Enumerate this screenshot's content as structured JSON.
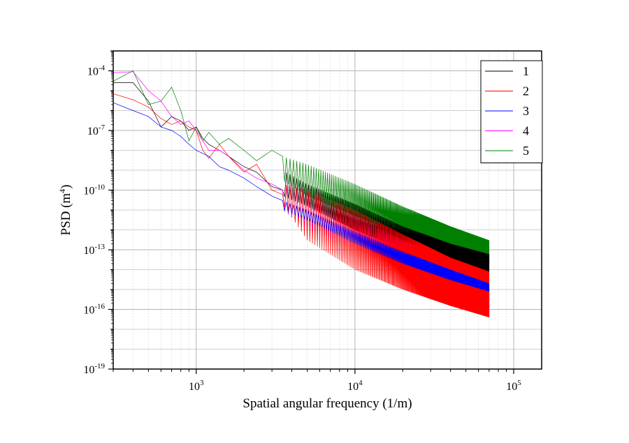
{
  "chart_data": {
    "type": "line",
    "title": "",
    "xlabel": "Spatial angular frequency (1/m)",
    "ylabel": "PSD (m",
    "ylabel_exponent": "4",
    "ylabel_suffix": ")",
    "x_scale": "log",
    "y_scale": "log",
    "xlim": [
      300,
      150000
    ],
    "ylim": [
      1e-19,
      0.001
    ],
    "grid": true,
    "legend_position": "top-right",
    "x_ticks": [
      {
        "value": 1000,
        "base": "10",
        "exp": "3"
      },
      {
        "value": 10000,
        "base": "10",
        "exp": "4"
      },
      {
        "value": 100000,
        "base": "10",
        "exp": "5"
      }
    ],
    "y_ticks": [
      {
        "value": 0.0001,
        "base": "10",
        "exp": "-4"
      },
      {
        "value": 1e-07,
        "base": "10",
        "exp": "-7"
      },
      {
        "value": 1e-10,
        "base": "10",
        "exp": "-10"
      },
      {
        "value": 1e-13,
        "base": "10",
        "exp": "-13"
      },
      {
        "value": 1e-16,
        "base": "10",
        "exp": "-16"
      },
      {
        "value": 1e-19,
        "base": "10",
        "exp": "-19"
      }
    ],
    "frequency_step": 100,
    "x_range": [
      300,
      70000
    ],
    "series": [
      {
        "name": "1",
        "color": "#000000",
        "start_points": [
          [
            300,
            2.5e-05
          ],
          [
            400,
            2.5e-05
          ],
          [
            500,
            3e-06
          ],
          [
            600,
            1.5e-07
          ],
          [
            700,
            5e-07
          ],
          [
            800,
            3e-07
          ],
          [
            900,
            1e-07
          ],
          [
            1000,
            1.5e-07
          ],
          [
            1100,
            4e-08
          ],
          [
            1200,
            2e-08
          ],
          [
            1400,
            1e-08
          ],
          [
            1600,
            5e-09
          ],
          [
            2000,
            1.5e-09
          ],
          [
            2400,
            8e-10
          ],
          [
            3000,
            1.5e-10
          ],
          [
            3500,
            1e-10
          ]
        ],
        "upper_points": [
          [
            3500,
            1e-09
          ],
          [
            5000,
            2e-10
          ],
          [
            10000,
            2e-11
          ],
          [
            20000,
            1.5e-12
          ],
          [
            40000,
            2e-13
          ],
          [
            70000,
            6e-14
          ]
        ],
        "lower_points": [
          [
            3500,
            5e-11
          ],
          [
            5000,
            1.5e-11
          ],
          [
            10000,
            1e-12
          ],
          [
            20000,
            1e-13
          ],
          [
            40000,
            2e-14
          ],
          [
            70000,
            7e-15
          ]
        ]
      },
      {
        "name": "2",
        "color": "#ff0000",
        "start_points": [
          [
            300,
            7e-06
          ],
          [
            400,
            3.5e-06
          ],
          [
            500,
            1.5e-06
          ],
          [
            600,
            4e-07
          ],
          [
            700,
            2e-07
          ],
          [
            800,
            3e-07
          ],
          [
            900,
            1.5e-07
          ],
          [
            1000,
            1e-07
          ],
          [
            1100,
            1e-08
          ],
          [
            1200,
            4e-09
          ],
          [
            1400,
            2e-08
          ],
          [
            1600,
            5e-09
          ],
          [
            2000,
            8e-10
          ],
          [
            2400,
            2e-09
          ],
          [
            3000,
            1e-10
          ],
          [
            3500,
            6e-11
          ]
        ],
        "upper_points": [
          [
            3500,
            2e-10
          ],
          [
            5000,
            1e-10
          ],
          [
            10000,
            1e-11
          ],
          [
            20000,
            6e-13
          ],
          [
            40000,
            4e-14
          ],
          [
            70000,
            8e-15
          ]
        ],
        "lower_points": [
          [
            3500,
            2e-11
          ],
          [
            5000,
            3e-13
          ],
          [
            10000,
            1e-14
          ],
          [
            20000,
            1e-15
          ],
          [
            40000,
            1.5e-16
          ],
          [
            70000,
            4e-17
          ]
        ]
      },
      {
        "name": "3",
        "color": "#0000ff",
        "start_points": [
          [
            300,
            2.5e-06
          ],
          [
            400,
            1e-06
          ],
          [
            500,
            5e-07
          ],
          [
            600,
            1.5e-07
          ],
          [
            700,
            1e-07
          ],
          [
            800,
            5e-08
          ],
          [
            900,
            2e-08
          ],
          [
            1000,
            1e-08
          ],
          [
            1100,
            7e-09
          ],
          [
            1200,
            5e-09
          ],
          [
            1400,
            1.5e-09
          ],
          [
            1600,
            1e-09
          ],
          [
            2000,
            4e-10
          ],
          [
            2400,
            1.5e-10
          ],
          [
            3000,
            5e-11
          ],
          [
            3500,
            3e-11
          ]
        ],
        "upper_points": [
          [
            3500,
            3e-11
          ],
          [
            5000,
            1e-11
          ],
          [
            10000,
            8e-13
          ],
          [
            20000,
            8e-14
          ],
          [
            40000,
            1e-14
          ],
          [
            70000,
            2e-15
          ]
        ],
        "lower_points": [
          [
            3500,
            1e-11
          ],
          [
            5000,
            3e-12
          ],
          [
            10000,
            2e-13
          ],
          [
            20000,
            2e-14
          ],
          [
            40000,
            3e-15
          ],
          [
            70000,
            8e-16
          ]
        ]
      },
      {
        "name": "4",
        "color": "#ff00ff",
        "start_points": [
          [
            300,
            8e-05
          ],
          [
            400,
            9e-05
          ],
          [
            500,
            1e-05
          ],
          [
            600,
            3e-06
          ],
          [
            700,
            5e-07
          ],
          [
            800,
            2e-07
          ],
          [
            900,
            3e-07
          ],
          [
            1000,
            1e-07
          ],
          [
            1100,
            3e-08
          ],
          [
            1200,
            1e-08
          ],
          [
            1400,
            1e-08
          ],
          [
            1600,
            5e-09
          ],
          [
            2000,
            1e-09
          ],
          [
            2400,
            4e-10
          ],
          [
            3000,
            2e-10
          ],
          [
            3500,
            1e-10
          ]
        ],
        "upper_points": [
          [
            3500,
            2e-10
          ],
          [
            5000,
            5e-11
          ],
          [
            10000,
            5e-12
          ],
          [
            20000,
            3e-13
          ],
          [
            40000,
            3e-14
          ],
          [
            70000,
            4e-15
          ]
        ],
        "lower_points": [
          [
            3500,
            1e-11
          ],
          [
            5000,
            1e-12
          ],
          [
            10000,
            1e-13
          ],
          [
            20000,
            1e-14
          ],
          [
            40000,
            1e-15
          ],
          [
            70000,
            1e-16
          ]
        ]
      },
      {
        "name": "5",
        "color": "#007f00",
        "start_points": [
          [
            300,
            3e-05
          ],
          [
            400,
            0.0001
          ],
          [
            500,
            2e-06
          ],
          [
            600,
            3e-06
          ],
          [
            700,
            1.5e-05
          ],
          [
            800,
            1e-06
          ],
          [
            900,
            3e-08
          ],
          [
            1000,
            1.5e-07
          ],
          [
            1100,
            3e-08
          ],
          [
            1200,
            8e-08
          ],
          [
            1400,
            2e-08
          ],
          [
            1600,
            4e-08
          ],
          [
            2000,
            1e-08
          ],
          [
            2400,
            3e-09
          ],
          [
            3000,
            1e-08
          ],
          [
            3500,
            5e-09
          ]
        ],
        "upper_points": [
          [
            3500,
            5e-09
          ],
          [
            5000,
            2e-09
          ],
          [
            10000,
            2e-10
          ],
          [
            20000,
            1.5e-11
          ],
          [
            40000,
            1.5e-12
          ],
          [
            70000,
            3e-13
          ]
        ],
        "lower_points": [
          [
            3500,
            3e-10
          ],
          [
            5000,
            5e-11
          ],
          [
            10000,
            5e-12
          ],
          [
            20000,
            6e-13
          ],
          [
            40000,
            8e-14
          ],
          [
            70000,
            2e-14
          ]
        ]
      }
    ]
  }
}
